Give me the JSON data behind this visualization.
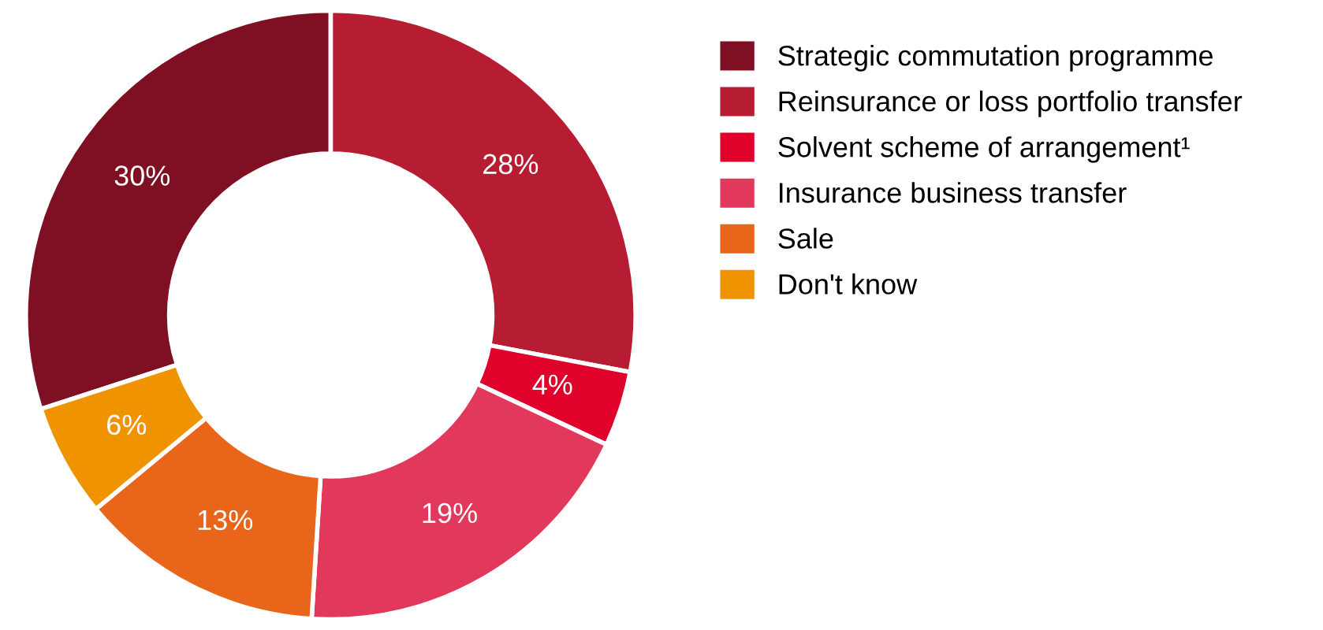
{
  "chart_data": {
    "type": "donut",
    "categories": [
      "Strategic commutation programme",
      "Reinsurance or loss portfolio transfer",
      "Solvent scheme of arrangement¹",
      "Insurance business transfer",
      "Sale",
      "Don't know"
    ],
    "values": [
      30,
      28,
      4,
      19,
      13,
      6
    ],
    "colors": [
      "#7f0f23",
      "#b61c32",
      "#e0022b",
      "#e2385c",
      "#e8651a",
      "#ef9400"
    ],
    "value_labels": [
      "30%",
      "28%",
      "4%",
      "19%",
      "13%",
      "6%"
    ],
    "legend": "right"
  }
}
